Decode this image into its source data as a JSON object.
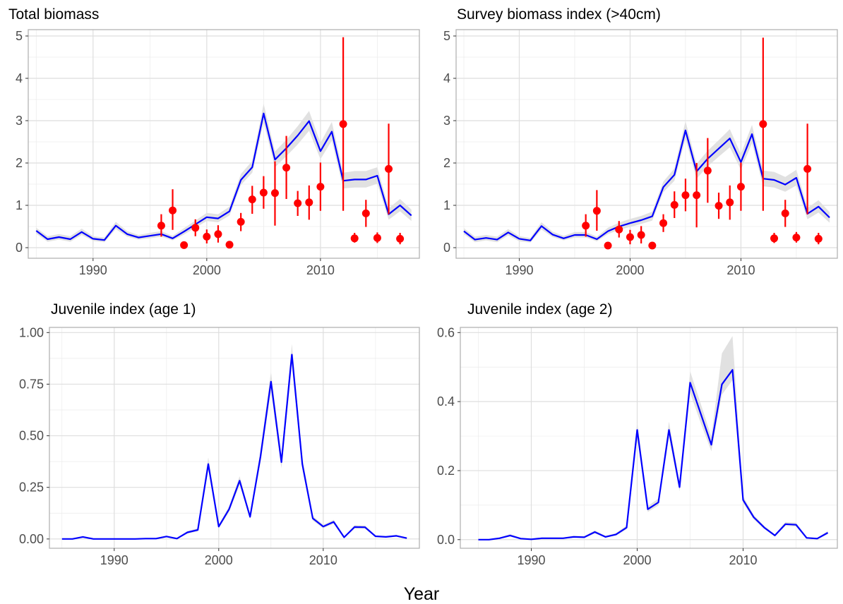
{
  "figure": {
    "xlabel": "Year",
    "colors": {
      "model_line": "#0000ff",
      "ribbon": "#e1e1e1",
      "observed": "#ff0000",
      "grid": "#ebebeb",
      "axis_text": "#4d4d4d",
      "panel_border": "#b3b3b3"
    }
  },
  "chart_data": [
    {
      "type": "line",
      "title": "Total biomass",
      "xlabel": "",
      "ylabel": "",
      "xlim": [
        1984.3,
        2018.7
      ],
      "ylim": [
        -0.25,
        5.15
      ],
      "x_ticks": [
        1990,
        2000,
        2010
      ],
      "y_ticks": [
        0,
        1,
        2,
        3,
        4,
        5
      ],
      "y_tick_labels": [
        "0",
        "1",
        "2",
        "3",
        "4",
        "5"
      ],
      "grid": true,
      "series": [
        {
          "kind": "line_with_ribbon",
          "x": [
            1985,
            1986,
            1987,
            1988,
            1989,
            1990,
            1991,
            1992,
            1993,
            1994,
            1995,
            1996,
            1997,
            1998,
            1999,
            2000,
            2001,
            2002,
            2003,
            2004,
            2005,
            2006,
            2007,
            2008,
            2009,
            2010,
            2011,
            2012,
            2013,
            2014,
            2015,
            2016,
            2017,
            2018
          ],
          "y": [
            0.4,
            0.2,
            0.25,
            0.2,
            0.37,
            0.21,
            0.18,
            0.52,
            0.32,
            0.24,
            0.28,
            0.32,
            0.22,
            0.38,
            0.55,
            0.72,
            0.69,
            0.86,
            1.6,
            1.9,
            3.17,
            2.08,
            2.35,
            2.65,
            2.99,
            2.28,
            2.74,
            1.58,
            1.61,
            1.61,
            1.7,
            0.79,
            1.0,
            0.76
          ],
          "lower": [
            0.33,
            0.14,
            0.19,
            0.14,
            0.3,
            0.16,
            0.13,
            0.44,
            0.26,
            0.19,
            0.22,
            0.26,
            0.17,
            0.31,
            0.47,
            0.63,
            0.6,
            0.76,
            1.48,
            1.77,
            2.95,
            1.9,
            2.16,
            2.44,
            2.76,
            2.09,
            2.53,
            1.4,
            1.42,
            1.42,
            1.51,
            0.66,
            0.86,
            0.63
          ],
          "upper": [
            0.47,
            0.27,
            0.32,
            0.27,
            0.45,
            0.27,
            0.24,
            0.61,
            0.39,
            0.3,
            0.35,
            0.39,
            0.28,
            0.46,
            0.64,
            0.82,
            0.79,
            0.97,
            1.74,
            2.05,
            3.4,
            2.27,
            2.55,
            2.87,
            3.23,
            2.48,
            2.97,
            1.77,
            1.81,
            1.81,
            1.9,
            0.93,
            1.15,
            0.9
          ]
        },
        {
          "kind": "points_with_error_bars",
          "x": [
            1996,
            1997,
            1998,
            1999,
            2000,
            2001,
            2002,
            2003,
            2004,
            2005,
            2006,
            2007,
            2008,
            2009,
            2010,
            2012,
            2013,
            2014,
            2015,
            2016,
            2017
          ],
          "y": [
            0.52,
            0.88,
            0.06,
            0.47,
            0.26,
            0.32,
            0.07,
            0.61,
            1.14,
            1.3,
            1.29,
            1.89,
            1.05,
            1.07,
            1.44,
            2.92,
            0.22,
            0.81,
            0.23,
            1.86,
            0.21
          ],
          "lower": [
            0.26,
            0.42,
            0.02,
            0.27,
            0.1,
            0.12,
            0.03,
            0.39,
            0.8,
            0.92,
            0.52,
            1.15,
            0.75,
            0.66,
            0.87,
            0.87,
            0.12,
            0.49,
            0.11,
            0.79,
            0.08
          ],
          "upper": [
            0.79,
            1.38,
            0.1,
            0.67,
            0.43,
            0.53,
            0.11,
            0.82,
            1.46,
            1.69,
            2.04,
            2.64,
            1.34,
            1.47,
            2.01,
            4.97,
            0.35,
            1.13,
            0.36,
            2.93,
            0.35
          ]
        }
      ]
    },
    {
      "type": "line",
      "title": "Survey biomass index (>40cm)",
      "xlabel": "",
      "ylabel": "",
      "xlim": [
        1984.3,
        2018.7
      ],
      "ylim": [
        -0.25,
        5.15
      ],
      "x_ticks": [
        1990,
        2000,
        2010
      ],
      "y_ticks": [
        0,
        1,
        2,
        3,
        4,
        5
      ],
      "y_tick_labels": [
        "0",
        "1",
        "2",
        "3",
        "4",
        "5"
      ],
      "grid": true,
      "series": [
        {
          "kind": "line_with_ribbon",
          "x": [
            1985,
            1986,
            1987,
            1988,
            1989,
            1990,
            1991,
            1992,
            1993,
            1994,
            1995,
            1996,
            1997,
            1998,
            1999,
            2000,
            2001,
            2002,
            2003,
            2004,
            2005,
            2006,
            2007,
            2008,
            2009,
            2010,
            2011,
            2012,
            2013,
            2014,
            2015,
            2016,
            2017,
            2018
          ],
          "y": [
            0.39,
            0.19,
            0.23,
            0.19,
            0.36,
            0.21,
            0.17,
            0.51,
            0.31,
            0.22,
            0.3,
            0.3,
            0.2,
            0.39,
            0.5,
            0.58,
            0.65,
            0.74,
            1.43,
            1.72,
            2.77,
            1.8,
            2.1,
            2.34,
            2.58,
            2.02,
            2.68,
            1.63,
            1.6,
            1.49,
            1.65,
            0.8,
            0.97,
            0.71
          ],
          "lower": [
            0.32,
            0.13,
            0.17,
            0.13,
            0.29,
            0.15,
            0.12,
            0.43,
            0.25,
            0.17,
            0.24,
            0.24,
            0.15,
            0.32,
            0.42,
            0.49,
            0.56,
            0.64,
            1.31,
            1.58,
            2.57,
            1.63,
            1.92,
            2.15,
            2.37,
            1.84,
            2.47,
            1.45,
            1.42,
            1.32,
            1.47,
            0.67,
            0.83,
            0.59
          ],
          "upper": [
            0.46,
            0.26,
            0.3,
            0.26,
            0.44,
            0.27,
            0.23,
            0.6,
            0.38,
            0.28,
            0.37,
            0.37,
            0.26,
            0.47,
            0.59,
            0.68,
            0.75,
            0.85,
            1.56,
            1.87,
            2.99,
            1.98,
            2.29,
            2.54,
            2.8,
            2.21,
            2.9,
            1.82,
            1.79,
            1.67,
            1.84,
            0.94,
            1.12,
            0.84
          ]
        },
        {
          "kind": "points_with_error_bars",
          "x": [
            1996,
            1997,
            1998,
            1999,
            2000,
            2001,
            2002,
            2003,
            2004,
            2005,
            2006,
            2007,
            2008,
            2009,
            2010,
            2012,
            2013,
            2014,
            2015,
            2016,
            2017
          ],
          "y": [
            0.52,
            0.87,
            0.05,
            0.43,
            0.25,
            0.3,
            0.05,
            0.58,
            1.01,
            1.24,
            1.24,
            1.82,
            0.99,
            1.07,
            1.44,
            2.92,
            0.22,
            0.81,
            0.24,
            1.86,
            0.21
          ],
          "lower": [
            0.26,
            0.4,
            0.01,
            0.24,
            0.08,
            0.1,
            0.01,
            0.37,
            0.7,
            0.86,
            0.48,
            1.06,
            0.68,
            0.66,
            0.87,
            0.87,
            0.11,
            0.49,
            0.12,
            0.79,
            0.08
          ],
          "upper": [
            0.79,
            1.36,
            0.09,
            0.63,
            0.42,
            0.51,
            0.09,
            0.79,
            1.33,
            1.63,
            2.0,
            2.59,
            1.3,
            1.47,
            2.01,
            4.96,
            0.35,
            1.13,
            0.37,
            2.93,
            0.35
          ]
        }
      ]
    },
    {
      "type": "line",
      "title": "Juvenile index (age 1)",
      "xlabel": "",
      "ylabel": "",
      "xlim": [
        1983.8,
        2019.2
      ],
      "ylim": [
        -0.045,
        1.025
      ],
      "x_ticks": [
        1990,
        2000,
        2010
      ],
      "y_ticks": [
        0,
        0.25,
        0.5,
        0.75,
        1.0
      ],
      "y_tick_labels": [
        "0.00",
        "0.25",
        "0.50",
        "0.75",
        "1.00"
      ],
      "grid": true,
      "series": [
        {
          "kind": "line_with_ribbon",
          "x": [
            1985,
            1986,
            1987,
            1988,
            1989,
            1990,
            1991,
            1992,
            1993,
            1994,
            1995,
            1996,
            1997,
            1998,
            1999,
            2000,
            2001,
            2002,
            2003,
            2004,
            2005,
            2006,
            2007,
            2008,
            2009,
            2010,
            2011,
            2012,
            2013,
            2014,
            2015,
            2016,
            2017,
            2018
          ],
          "y": [
            0.0,
            0.0,
            0.01,
            0.0,
            0.0,
            0.0,
            0.0,
            0.0,
            0.002,
            0.002,
            0.012,
            0.002,
            0.032,
            0.044,
            0.363,
            0.06,
            0.145,
            0.282,
            0.107,
            0.4,
            0.762,
            0.372,
            0.893,
            0.363,
            0.1,
            0.06,
            0.083,
            0.008,
            0.058,
            0.057,
            0.013,
            0.01,
            0.015,
            0.004
          ],
          "lower": [
            0.0,
            0.0,
            0.007,
            0.0,
            0.0,
            0.0,
            0.0,
            0.0,
            0.001,
            0.001,
            0.009,
            0.001,
            0.026,
            0.037,
            0.335,
            0.052,
            0.132,
            0.262,
            0.096,
            0.372,
            0.718,
            0.342,
            0.845,
            0.337,
            0.089,
            0.052,
            0.074,
            0.005,
            0.05,
            0.049,
            0.01,
            0.007,
            0.011,
            0.002
          ],
          "upper": [
            0.0,
            0.0,
            0.013,
            0.0,
            0.0,
            0.0,
            0.0,
            0.0,
            0.003,
            0.003,
            0.015,
            0.003,
            0.038,
            0.052,
            0.395,
            0.069,
            0.159,
            0.304,
            0.119,
            0.432,
            0.81,
            0.405,
            0.945,
            0.392,
            0.112,
            0.069,
            0.093,
            0.011,
            0.067,
            0.066,
            0.016,
            0.013,
            0.019,
            0.006
          ]
        }
      ]
    },
    {
      "type": "line",
      "title": "Juvenile index (age 2)",
      "xlabel": "",
      "ylabel": "",
      "xlim": [
        1983.3,
        2018.9
      ],
      "ylim": [
        -0.025,
        0.615
      ],
      "x_ticks": [
        1990,
        2000,
        2010
      ],
      "y_ticks": [
        0,
        0.2,
        0.4,
        0.6
      ],
      "y_tick_labels": [
        "0.0",
        "0.2",
        "0.4",
        "0.6"
      ],
      "grid": true,
      "series": [
        {
          "kind": "line_with_ribbon",
          "x": [
            1985,
            1986,
            1987,
            1988,
            1989,
            1990,
            1991,
            1992,
            1993,
            1994,
            1995,
            1996,
            1997,
            1998,
            1999,
            2000,
            2001,
            2002,
            2003,
            2004,
            2005,
            2006,
            2007,
            2008,
            2009,
            2010,
            2011,
            2012,
            2013,
            2014,
            2015,
            2016,
            2017,
            2018
          ],
          "y": [
            0.0,
            0.0,
            0.004,
            0.012,
            0.003,
            0.001,
            0.004,
            0.004,
            0.004,
            0.008,
            0.007,
            0.022,
            0.008,
            0.015,
            0.035,
            0.318,
            0.088,
            0.108,
            0.318,
            0.152,
            0.455,
            0.365,
            0.275,
            0.45,
            0.492,
            0.115,
            0.065,
            0.035,
            0.012,
            0.045,
            0.043,
            0.005,
            0.003,
            0.02
          ],
          "lower": [
            0.0,
            0.0,
            0.002,
            0.009,
            0.001,
            0.0,
            0.002,
            0.002,
            0.002,
            0.006,
            0.005,
            0.018,
            0.006,
            0.012,
            0.03,
            0.297,
            0.08,
            0.099,
            0.297,
            0.14,
            0.425,
            0.338,
            0.256,
            0.42,
            0.462,
            0.106,
            0.059,
            0.031,
            0.009,
            0.04,
            0.038,
            0.003,
            0.001,
            0.016
          ],
          "upper": [
            0.0,
            0.0,
            0.006,
            0.016,
            0.005,
            0.002,
            0.006,
            0.006,
            0.006,
            0.011,
            0.01,
            0.027,
            0.011,
            0.019,
            0.041,
            0.342,
            0.097,
            0.119,
            0.342,
            0.167,
            0.488,
            0.394,
            0.298,
            0.54,
            0.59,
            0.126,
            0.072,
            0.04,
            0.015,
            0.051,
            0.049,
            0.007,
            0.005,
            0.025
          ]
        }
      ]
    }
  ]
}
